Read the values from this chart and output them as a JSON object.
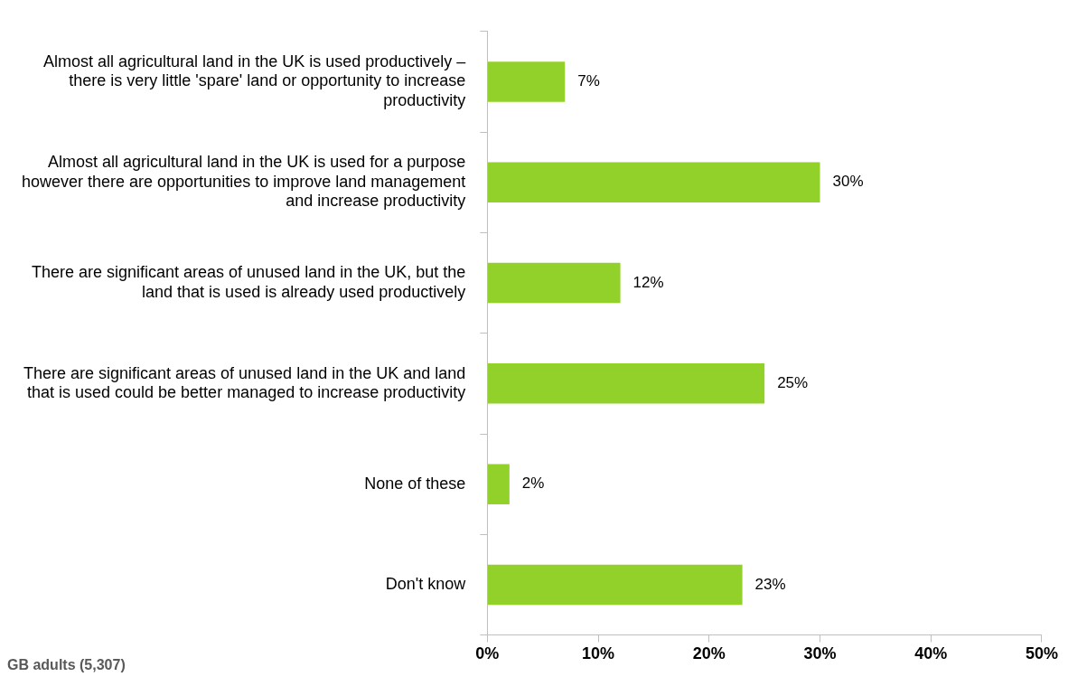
{
  "chart_data": {
    "type": "bar",
    "orientation": "horizontal",
    "categories": [
      "Almost all agricultural land in the UK is used productively – there is very little 'spare' land or opportunity to increase productivity",
      "Almost all agricultural land in the UK is used for a purpose however there are opportunities to improve land management and increase productivity",
      "There are significant areas of unused land in the UK, but the land that is used is already used productively",
      "There are significant areas of unused land in the UK and land that is used could be better managed to increase productivity",
      "None of these",
      "Don't know"
    ],
    "values": [
      7,
      30,
      12,
      25,
      2,
      23
    ],
    "color": "#92d02a",
    "xlim": [
      0,
      50
    ],
    "xticks": [
      {
        "value": 0,
        "label": "0%"
      },
      {
        "value": 10,
        "label": "10%"
      },
      {
        "value": 20,
        "label": "20%"
      },
      {
        "value": 30,
        "label": "30%"
      },
      {
        "value": 40,
        "label": "40%"
      },
      {
        "value": 50,
        "label": "50%"
      }
    ],
    "value_labels": [
      "7%",
      "30%",
      "12%",
      "25%",
      "2%",
      "23%"
    ],
    "grid": false,
    "legend": false,
    "annotations": [
      "GB adults (5,307)"
    ]
  }
}
